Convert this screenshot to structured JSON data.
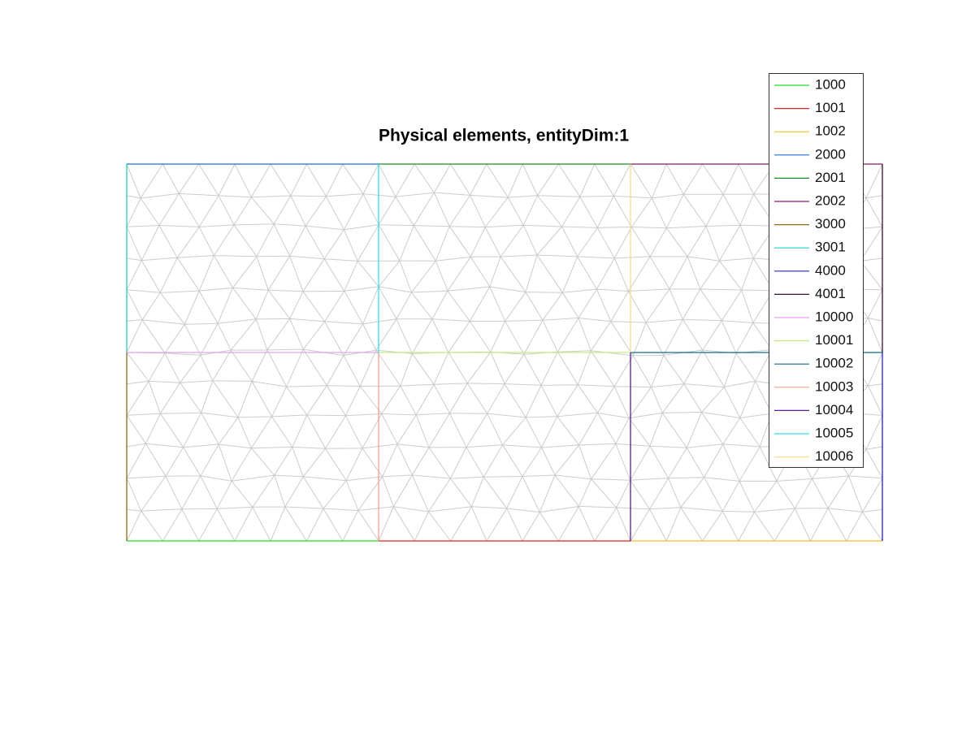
{
  "title": "Physical elements, entityDim:1",
  "legend": [
    {
      "label": "1000",
      "color": "#22dd22"
    },
    {
      "label": "1001",
      "color": "#e02020"
    },
    {
      "label": "1002",
      "color": "#f0c020"
    },
    {
      "label": "2000",
      "color": "#1a70d0"
    },
    {
      "label": "2001",
      "color": "#208a20"
    },
    {
      "label": "2002",
      "color": "#8a1a6a"
    },
    {
      "label": "3000",
      "color": "#8a6a20"
    },
    {
      "label": "3001",
      "color": "#20d0c0"
    },
    {
      "label": "4000",
      "color": "#2020e0"
    },
    {
      "label": "4001",
      "color": "#3a1030"
    },
    {
      "label": "10000",
      "color": "#e8a0f0"
    },
    {
      "label": "10001",
      "color": "#c0f080"
    },
    {
      "label": "10002",
      "color": "#106a8a"
    },
    {
      "label": "10003",
      "color": "#f0a090"
    },
    {
      "label": "10004",
      "color": "#601a9a"
    },
    {
      "label": "10005",
      "color": "#30e0f0"
    },
    {
      "label": "10006",
      "color": "#f0e090"
    }
  ]
}
